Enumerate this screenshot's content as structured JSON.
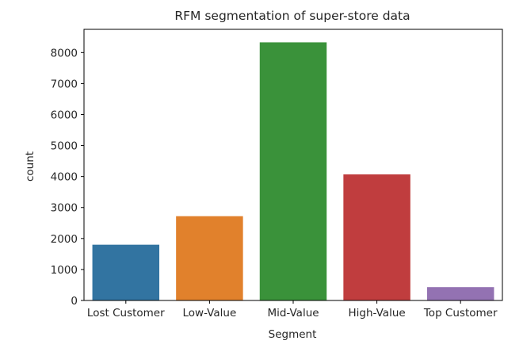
{
  "chart_data": {
    "type": "bar",
    "title": "RFM segmentation of super-store data",
    "xlabel": "Segment",
    "ylabel": "count",
    "categories": [
      "Lost Customer",
      "Low-Value",
      "Mid-Value",
      "High-Value",
      "Top Customer"
    ],
    "values": [
      1800,
      2720,
      8330,
      4070,
      430
    ],
    "yticks": [
      "0",
      "1000",
      "2000",
      "3000",
      "4000",
      "5000",
      "6000",
      "7000",
      "8000"
    ],
    "ylim": [
      0,
      8750
    ],
    "grid": false,
    "legend": "none",
    "colors": [
      "#3274a1",
      "#e1812c",
      "#3a923a",
      "#c03d3e",
      "#9372b2"
    ]
  }
}
